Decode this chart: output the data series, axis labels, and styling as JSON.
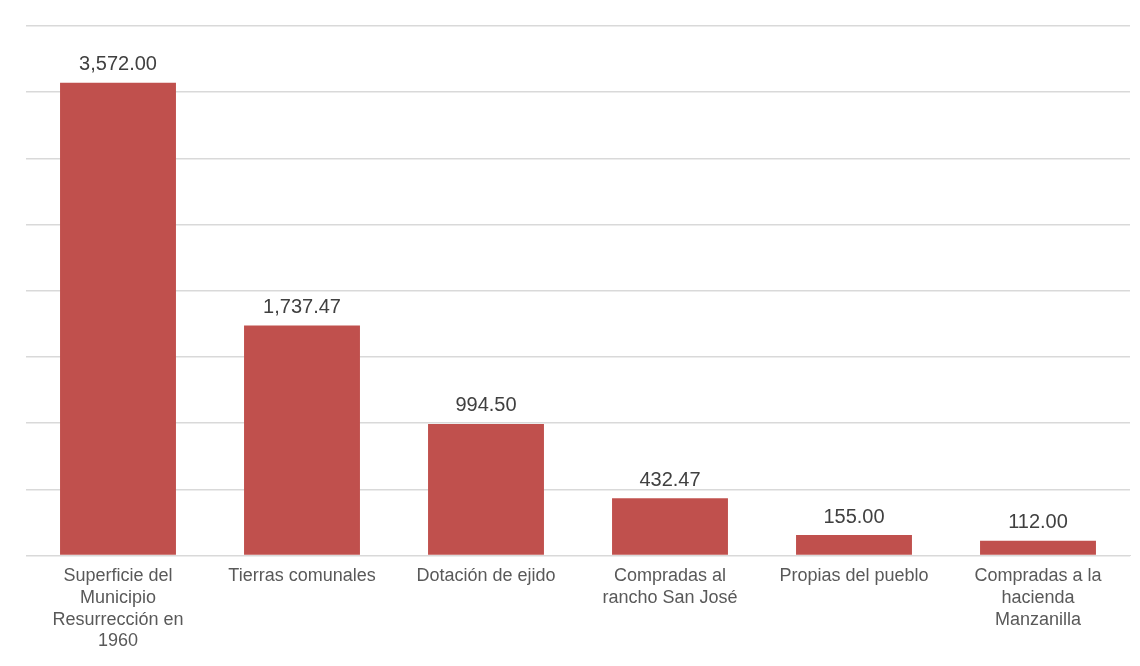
{
  "chart_data": {
    "type": "bar",
    "categories": [
      "Superficie del Municipio Resurrección en 1960",
      "Tierras comunales",
      "Dotación de ejido",
      "Compradas al rancho San José",
      "Propias del pueblo",
      "Compradas a la hacienda Manzanilla"
    ],
    "values": [
      3572.0,
      1737.47,
      994.5,
      432.47,
      155.0,
      112.0
    ],
    "value_labels": [
      "3,572.00",
      "1,737.47",
      "994.50",
      "432.47",
      "155.00",
      "112.00"
    ],
    "color": "#c0504d",
    "ylim": [
      0,
      4000
    ],
    "yticks": [
      0,
      500,
      1000,
      1500,
      2000,
      2500,
      3000,
      3500,
      4000
    ],
    "grid": "y",
    "tick_labels": "x",
    "legend": false
  }
}
